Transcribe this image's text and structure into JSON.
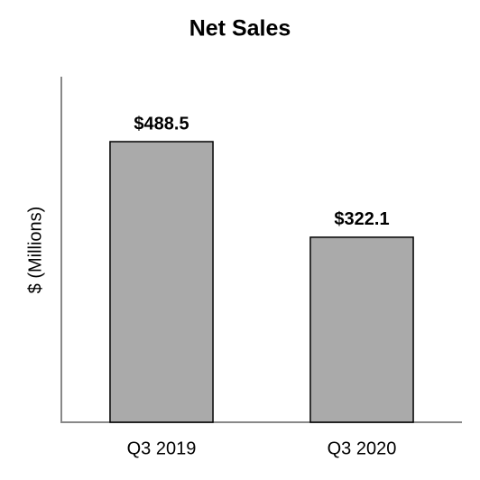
{
  "chart_data": {
    "type": "bar",
    "title": "Net Sales",
    "y_label": "$ (Millions)",
    "categories": [
      "Q3 2019",
      "Q3 2020"
    ],
    "values": [
      488.5,
      322.1
    ],
    "value_labels": [
      "$488.5",
      "$322.1"
    ],
    "color": "#aaaaaa",
    "ylim": [
      0,
      600
    ]
  }
}
